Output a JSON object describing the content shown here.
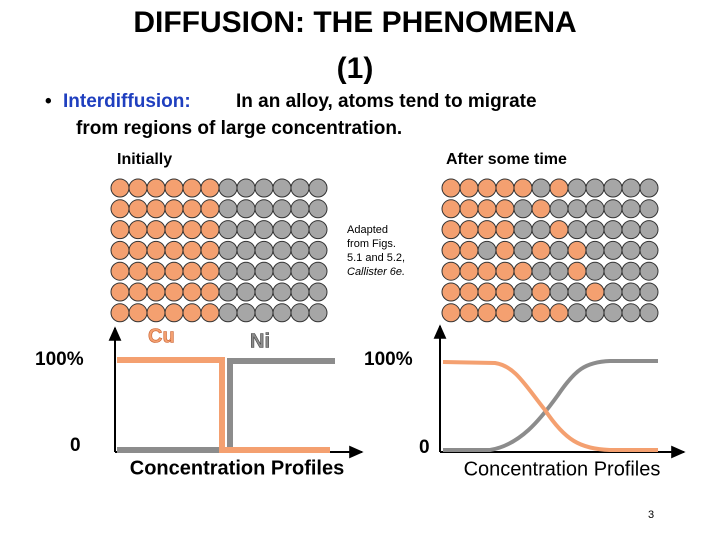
{
  "title": {
    "line1": "DIFFUSION:  THE PHENOMENA",
    "line2": "(1)"
  },
  "bullet": {
    "term": "Interdiffusion:",
    "text_line1": "In an alloy, atoms tend to migrate",
    "text_line2": "from regions of large concentration."
  },
  "panels": [
    {
      "heading": "Initially",
      "labels": [
        "Cu",
        "Ni"
      ],
      "y_top": "100%",
      "y_bottom": "0",
      "caption": "Concentration Profiles"
    },
    {
      "heading": "After some time",
      "y_top": "100%",
      "y_bottom": "0",
      "caption": "Concentration Profiles"
    }
  ],
  "credit": {
    "lines": [
      "Adapted",
      "from Figs.",
      "5.1 and 5.2,"
    ],
    "book": "Callister 6e."
  },
  "page_number": "3"
}
